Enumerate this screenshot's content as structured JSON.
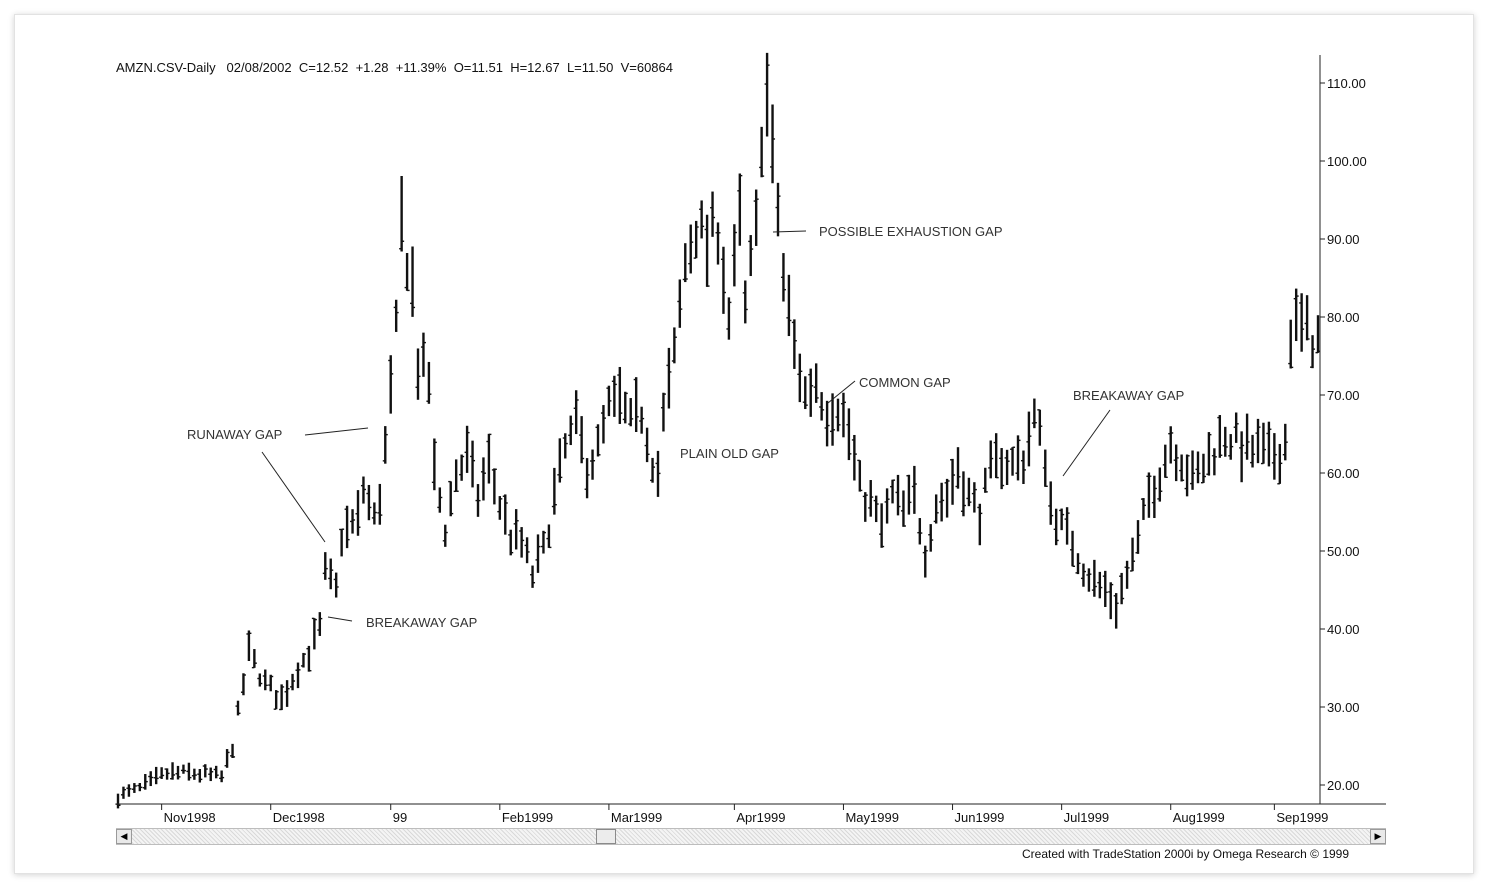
{
  "header": {
    "symbol": "AMZN.CSV-Daily",
    "date": "02/08/2002",
    "close": "C=12.52",
    "change": "+1.28",
    "change_pct": "+11.39%",
    "open": "O=11.51",
    "high": "H=12.67",
    "low": "L=11.50",
    "volume": "V=60864"
  },
  "footer": {
    "credit": "Created with TradeStation 2000i by Omega Research © 1999"
  },
  "chart_data": {
    "type": "bar",
    "subtype": "ohlc",
    "grid": false,
    "y_axis_position": "right",
    "ylim": [
      17.5,
      113
    ],
    "y_ticks": [
      "20.00",
      "30.00",
      "40.00",
      "50.00",
      "60.00",
      "70.00",
      "80.00",
      "90.00",
      "100.00",
      "110.00"
    ],
    "x_ticks": [
      "Nov1998",
      "Dec1998",
      "99",
      "Feb1999",
      "Mar1999",
      "Apr1999",
      "May1999",
      "Jun1999",
      "Jul1999",
      "Aug1999",
      "Sep1999"
    ],
    "x_tick_index": [
      8,
      28,
      50,
      70,
      90,
      113,
      133,
      153,
      173,
      193,
      212
    ],
    "anchors": [
      {
        "i": 0,
        "p": 18.5
      },
      {
        "i": 4,
        "p": 19.5
      },
      {
        "i": 9,
        "p": 21.5
      },
      {
        "i": 14,
        "p": 21.5
      },
      {
        "i": 19,
        "p": 21
      },
      {
        "i": 21,
        "p": 25
      },
      {
        "i": 24,
        "p": 37
      },
      {
        "i": 27,
        "p": 33
      },
      {
        "i": 30,
        "p": 31
      },
      {
        "i": 33,
        "p": 35
      },
      {
        "i": 35,
        "p": 37
      },
      {
        "i": 37,
        "p": 40
      },
      {
        "i": 38,
        "p": 47
      },
      {
        "i": 40,
        "p": 45
      },
      {
        "i": 41,
        "p": 52
      },
      {
        "i": 44,
        "p": 54
      },
      {
        "i": 45,
        "p": 58
      },
      {
        "i": 47,
        "p": 54
      },
      {
        "i": 48,
        "p": 57
      },
      {
        "i": 49,
        "p": 63
      },
      {
        "i": 50,
        "p": 70
      },
      {
        "i": 51,
        "p": 78
      },
      {
        "i": 52,
        "p": 92
      },
      {
        "i": 54,
        "p": 84
      },
      {
        "i": 55,
        "p": 74
      },
      {
        "i": 57,
        "p": 72
      },
      {
        "i": 58,
        "p": 60
      },
      {
        "i": 60,
        "p": 53
      },
      {
        "i": 62,
        "p": 60
      },
      {
        "i": 64,
        "p": 62
      },
      {
        "i": 66,
        "p": 57
      },
      {
        "i": 68,
        "p": 61
      },
      {
        "i": 70,
        "p": 56
      },
      {
        "i": 72,
        "p": 52
      },
      {
        "i": 74,
        "p": 51
      },
      {
        "i": 76,
        "p": 47
      },
      {
        "i": 78,
        "p": 50
      },
      {
        "i": 80,
        "p": 57
      },
      {
        "i": 82,
        "p": 63
      },
      {
        "i": 84,
        "p": 66
      },
      {
        "i": 86,
        "p": 61
      },
      {
        "i": 88,
        "p": 63
      },
      {
        "i": 90,
        "p": 68
      },
      {
        "i": 92,
        "p": 69
      },
      {
        "i": 94,
        "p": 66
      },
      {
        "i": 96,
        "p": 68
      },
      {
        "i": 98,
        "p": 62
      },
      {
        "i": 99,
        "p": 60
      },
      {
        "i": 100,
        "p": 67
      },
      {
        "i": 102,
        "p": 75
      },
      {
        "i": 104,
        "p": 87
      },
      {
        "i": 106,
        "p": 92
      },
      {
        "i": 108,
        "p": 89
      },
      {
        "i": 110,
        "p": 92
      },
      {
        "i": 112,
        "p": 80
      },
      {
        "i": 114,
        "p": 92
      },
      {
        "i": 115,
        "p": 81
      },
      {
        "i": 117,
        "p": 91
      },
      {
        "i": 118,
        "p": 104
      },
      {
        "i": 119,
        "p": 108
      },
      {
        "i": 120,
        "p": 100
      },
      {
        "i": 121,
        "p": 94
      },
      {
        "i": 122,
        "p": 85
      },
      {
        "i": 124,
        "p": 76
      },
      {
        "i": 126,
        "p": 70
      },
      {
        "i": 128,
        "p": 72
      },
      {
        "i": 130,
        "p": 68
      },
      {
        "i": 132,
        "p": 69
      },
      {
        "i": 134,
        "p": 65
      },
      {
        "i": 136,
        "p": 58
      },
      {
        "i": 138,
        "p": 56
      },
      {
        "i": 140,
        "p": 53
      },
      {
        "i": 142,
        "p": 57
      },
      {
        "i": 144,
        "p": 55
      },
      {
        "i": 146,
        "p": 57
      },
      {
        "i": 148,
        "p": 50
      },
      {
        "i": 150,
        "p": 56
      },
      {
        "i": 152,
        "p": 57
      },
      {
        "i": 154,
        "p": 61
      },
      {
        "i": 156,
        "p": 57
      },
      {
        "i": 158,
        "p": 55
      },
      {
        "i": 160,
        "p": 60
      },
      {
        "i": 162,
        "p": 62
      },
      {
        "i": 164,
        "p": 61
      },
      {
        "i": 166,
        "p": 62
      },
      {
        "i": 168,
        "p": 67
      },
      {
        "i": 170,
        "p": 62
      },
      {
        "i": 171,
        "p": 56
      },
      {
        "i": 173,
        "p": 53
      },
      {
        "i": 175,
        "p": 51
      },
      {
        "i": 177,
        "p": 48
      },
      {
        "i": 179,
        "p": 46
      },
      {
        "i": 181,
        "p": 45
      },
      {
        "i": 183,
        "p": 43
      },
      {
        "i": 185,
        "p": 47
      },
      {
        "i": 187,
        "p": 51
      },
      {
        "i": 189,
        "p": 57
      },
      {
        "i": 191,
        "p": 60
      },
      {
        "i": 193,
        "p": 64
      },
      {
        "i": 195,
        "p": 62
      },
      {
        "i": 197,
        "p": 59
      },
      {
        "i": 199,
        "p": 61
      },
      {
        "i": 201,
        "p": 63
      },
      {
        "i": 203,
        "p": 65
      },
      {
        "i": 205,
        "p": 64
      },
      {
        "i": 207,
        "p": 63
      },
      {
        "i": 209,
        "p": 63
      },
      {
        "i": 211,
        "p": 62
      },
      {
        "i": 213,
        "p": 63
      },
      {
        "i": 214,
        "p": 64
      },
      {
        "i": 215,
        "p": 78
      },
      {
        "i": 216,
        "p": 79
      },
      {
        "i": 218,
        "p": 78
      },
      {
        "i": 220,
        "p": 77
      }
    ],
    "annotations": [
      {
        "name": "runaway-gap",
        "text": "RUNAWAY GAP"
      },
      {
        "name": "breakaway-gap-1",
        "text": "BREAKAWAY GAP"
      },
      {
        "name": "plain-old-gap",
        "text": "PLAIN OLD GAP"
      },
      {
        "name": "possible-exhaustion-gap",
        "text": "POSSIBLE EXHAUSTION GAP"
      },
      {
        "name": "common-gap",
        "text": "COMMON GAP"
      },
      {
        "name": "breakaway-gap-2",
        "text": "BREAKAWAY GAP"
      }
    ]
  }
}
